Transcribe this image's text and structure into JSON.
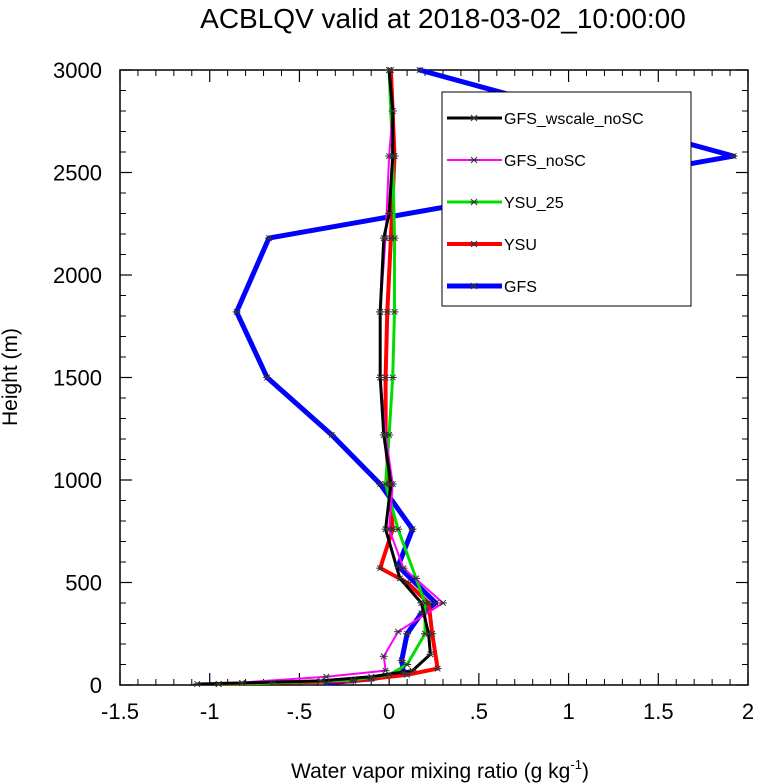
{
  "chart_data": {
    "type": "line",
    "title": "ACBLQV valid at 2018-03-02_10:00:00",
    "xlabel": "Water vapor mixing ratio (g kg",
    "xlabel_sup": "-1",
    "xlabel_close": ")",
    "ylabel": "Height (m)",
    "xlim": [
      -1.5,
      2
    ],
    "ylim": [
      0,
      3000
    ],
    "xticks": [
      {
        "value": -1.5,
        "label": "-1.5"
      },
      {
        "value": -1,
        "label": "-1"
      },
      {
        "value": -0.5,
        "label": "-.5"
      },
      {
        "value": 0,
        "label": "0"
      },
      {
        "value": 0.5,
        "label": ".5"
      },
      {
        "value": 1,
        "label": "1"
      },
      {
        "value": 1.5,
        "label": "1.5"
      },
      {
        "value": 2,
        "label": "2"
      }
    ],
    "yticks": [
      {
        "value": 0,
        "label": "0"
      },
      {
        "value": 500,
        "label": "500"
      },
      {
        "value": 1000,
        "label": "1000"
      },
      {
        "value": 1500,
        "label": "1500"
      },
      {
        "value": 2000,
        "label": "2000"
      },
      {
        "value": 2500,
        "label": "2500"
      },
      {
        "value": 3000,
        "label": "3000"
      }
    ],
    "legend_position": "top-right",
    "grid": false,
    "series": [
      {
        "name": "GFS_wscale_noSC",
        "color": "#000000",
        "x": [
          -1.07,
          -0.82,
          -0.38,
          -0.1,
          0.13,
          0.23,
          0.22,
          0.18,
          0.06,
          -0.02,
          0.01,
          -0.03,
          -0.05,
          -0.05,
          -0.03,
          0.0,
          0.02,
          0.02,
          0.0
        ],
        "y": [
          5,
          10,
          20,
          40,
          70,
          150,
          250,
          400,
          520,
          760,
          980,
          1220,
          1500,
          1820,
          2180,
          2300,
          2580,
          2800,
          3000
        ]
      },
      {
        "name": "GFS_noSC",
        "color": "#ff00ff",
        "x": [
          -0.95,
          -0.35,
          -0.02,
          -0.03,
          0.05,
          0.3,
          0.08,
          0.0,
          0.02,
          -0.02,
          -0.05,
          -0.05,
          -0.02,
          0.0,
          0.02,
          0.0
        ],
        "y": [
          5,
          40,
          70,
          140,
          260,
          400,
          570,
          760,
          980,
          1220,
          1500,
          1820,
          2180,
          2580,
          2800,
          3000
        ]
      },
      {
        "name": "YSU_25",
        "color": "#00dd00",
        "x": [
          -0.95,
          -0.65,
          -0.2,
          0.0,
          0.1,
          0.2,
          0.2,
          0.15,
          0.05,
          -0.02,
          0.0,
          0.02,
          0.03,
          0.03,
          0.02,
          0.0
        ],
        "y": [
          5,
          10,
          25,
          50,
          100,
          250,
          400,
          520,
          760,
          980,
          1220,
          1500,
          1820,
          2180,
          2580,
          3000
        ]
      },
      {
        "name": "YSU",
        "color": "#ff0000",
        "x": [
          -0.95,
          -0.2,
          0.1,
          0.27,
          0.24,
          0.22,
          0.1,
          -0.05,
          0.02,
          0.0,
          -0.02,
          -0.02,
          -0.01,
          0.01,
          0.03,
          0.01
        ],
        "y": [
          5,
          20,
          50,
          80,
          250,
          400,
          500,
          570,
          760,
          980,
          1220,
          1500,
          1820,
          2180,
          2580,
          3000
        ]
      },
      {
        "name": "GFS",
        "color": "#0000ff",
        "x": [
          -0.35,
          -0.1,
          0.08,
          0.07,
          0.1,
          0.18,
          0.26,
          0.05,
          0.13,
          -0.05,
          -0.32,
          -0.68,
          -0.85,
          -0.67,
          1.92,
          0.17
        ],
        "y": [
          10,
          30,
          60,
          120,
          250,
          350,
          400,
          580,
          760,
          980,
          1220,
          1500,
          1820,
          2180,
          2580,
          3000
        ]
      }
    ]
  }
}
